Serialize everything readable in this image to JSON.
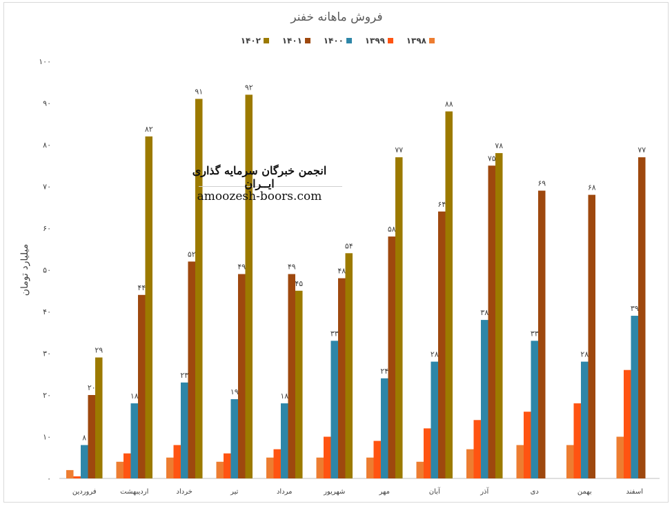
{
  "chart_data": {
    "type": "bar",
    "title": "فروش ماهانه خفنر",
    "ylabel": "میلیارد تومان",
    "xlabel": "",
    "ylim": [
      0,
      100
    ],
    "yticks": [
      "۰",
      "۱۰",
      "۲۰",
      "۳۰",
      "۴۰",
      "۵۰",
      "۶۰",
      "۷۰",
      "۸۰",
      "۹۰",
      "۱۰۰"
    ],
    "grid": false,
    "legend_position": "top",
    "categories": [
      "فروردین",
      "اردیبهشت",
      "خرداد",
      "تیر",
      "مرداد",
      "شهریور",
      "مهر",
      "آبان",
      "آذر",
      "دی",
      "بهمن",
      "اسفند"
    ],
    "series": [
      {
        "name": "۱۳۹۸",
        "color": "#ed7d31",
        "values": [
          2,
          4,
          5,
          4,
          5,
          5,
          5,
          4,
          7,
          8,
          8,
          10
        ],
        "labels": null
      },
      {
        "name": "۱۳۹۹",
        "color": "#ff5412",
        "values": [
          0.5,
          6,
          8,
          6,
          7,
          10,
          9,
          12,
          14,
          16,
          18,
          26
        ],
        "labels": null
      },
      {
        "name": "۱۴۰۰",
        "color": "#2e86a8",
        "values": [
          8,
          18,
          23,
          19,
          18,
          33,
          24,
          28,
          38,
          33,
          28,
          39
        ],
        "labels": [
          "۸",
          "۱۸",
          "۲۳",
          "۱۹",
          "۱۸",
          "۳۳",
          "۲۴",
          "۲۸",
          "۳۸",
          "۳۳",
          "۲۸",
          "۳۹"
        ]
      },
      {
        "name": "۱۴۰۱",
        "color": "#9e480e",
        "values": [
          20,
          44,
          52,
          49,
          49,
          48,
          58,
          64,
          75,
          69,
          68,
          77
        ],
        "labels": [
          "۲۰",
          "۴۴",
          "۵۲",
          "۴۹",
          "۴۹",
          "۴۸",
          "۵۸",
          "۶۴",
          "۷۵",
          "۶۹",
          "۶۸",
          "۷۷"
        ]
      },
      {
        "name": "۱۴۰۲",
        "color": "#9c7a00",
        "values": [
          29,
          82,
          91,
          92,
          45,
          54,
          77,
          88,
          78,
          null,
          null,
          null
        ],
        "labels": [
          "۲۹",
          "۸۲",
          "۹۱",
          "۹۲",
          "۴۵",
          "۵۴",
          "۷۷",
          "۸۸",
          "۷۸",
          null,
          null,
          null
        ]
      }
    ]
  },
  "watermark": {
    "title": "انجمن خبرگان سرمایه گذاری ایــران",
    "site": "amoozesh-boors.com"
  }
}
